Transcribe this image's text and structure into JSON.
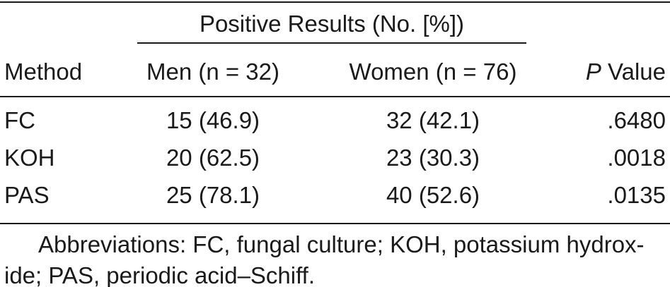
{
  "table": {
    "group_header": "Positive Results (No. [%])",
    "columns": {
      "method": "Method",
      "men": "Men (n = 32)",
      "women": "Women (n = 76)",
      "p_italic": "P",
      "p_rest": " Value"
    },
    "rows": [
      {
        "method": "FC",
        "men": "15 (46.9)",
        "women": "32 (42.1)",
        "p": ".6480"
      },
      {
        "method": "KOH",
        "men": "20 (62.5)",
        "women": "23 (30.3)",
        "p": ".0018"
      },
      {
        "method": "PAS",
        "men": "25 (78.1)",
        "women": "40 (52.6)",
        "p": ".0135"
      }
    ]
  },
  "footnote": {
    "line1": "Abbreviations: FC, fungal culture; KOH, potassium hydrox-",
    "line2": "ide; PAS, periodic acid–Schiff."
  }
}
